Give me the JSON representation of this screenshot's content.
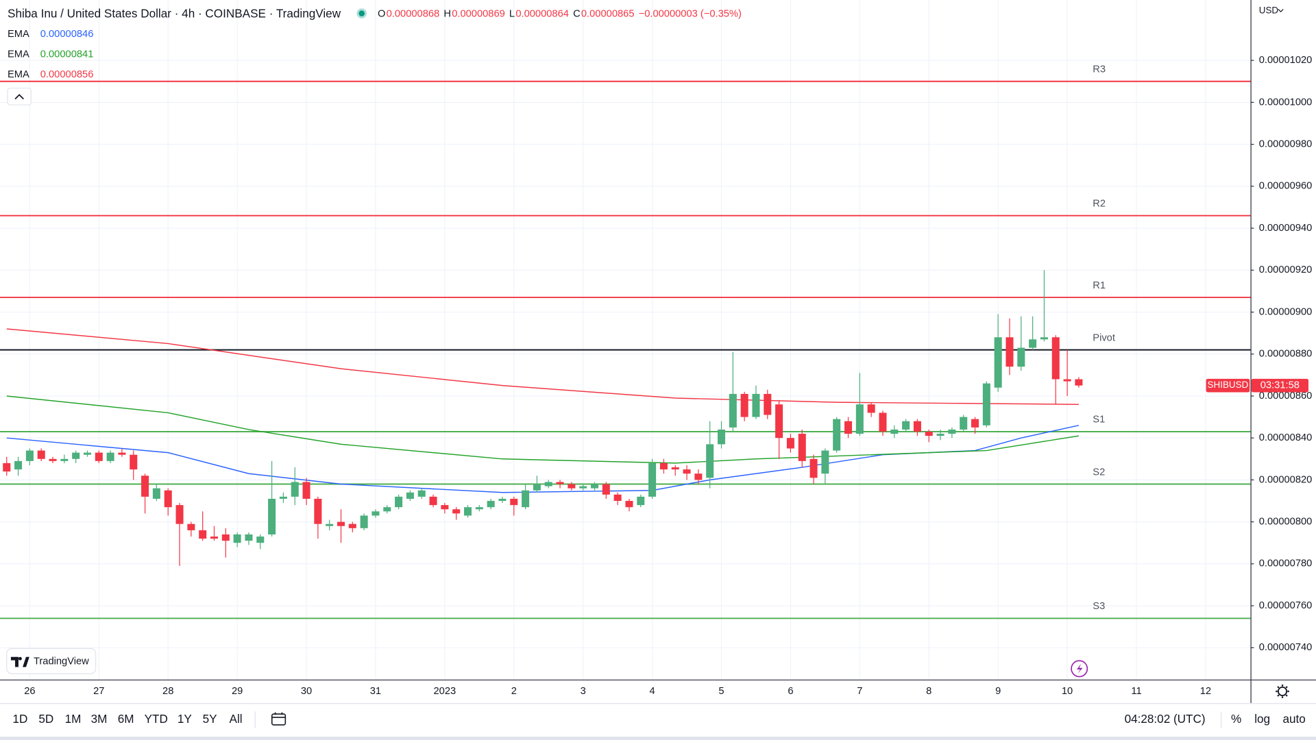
{
  "chart_data": {
    "type": "candlestick",
    "title": "Shiba Inu / United States Dollar · 4h · COINBASE · TradingView",
    "ohlc": [
      {
        "k": "O",
        "v": "0.00000868"
      },
      {
        "k": "H",
        "v": "0.00000869"
      },
      {
        "k": "L",
        "v": "0.00000864"
      },
      {
        "k": "C",
        "v": "0.00000865"
      }
    ],
    "change": "−0.00000003 (−0.35%)",
    "x": [
      0,
      1,
      2,
      3,
      4,
      5,
      6,
      7,
      8,
      9,
      10,
      11,
      12,
      13,
      14,
      15,
      16,
      17,
      18,
      19,
      20,
      21,
      22,
      23,
      24,
      25,
      26,
      27,
      28,
      29,
      30,
      31,
      32,
      33,
      34,
      35,
      36,
      37,
      38,
      39,
      40,
      41,
      42,
      43,
      44,
      45,
      46,
      47,
      48,
      49,
      50,
      51,
      52,
      53,
      54,
      55,
      56,
      57,
      58,
      59,
      60,
      61,
      62,
      63,
      64,
      65,
      66,
      67,
      68,
      69,
      70,
      71,
      72,
      73,
      74,
      75,
      76,
      77,
      78,
      79,
      80,
      81,
      82,
      83,
      84,
      85,
      86,
      87,
      88,
      89,
      90,
      91,
      92,
      93
    ],
    "open": [
      8.28e-06,
      8.25e-06,
      8.29e-06,
      8.34e-06,
      8.3e-06,
      8.29e-06,
      8.3e-06,
      8.32e-06,
      8.33e-06,
      8.29e-06,
      8.33e-06,
      8.32e-06,
      8.22e-06,
      8.11e-06,
      8.15e-06,
      8.08e-06,
      7.99e-06,
      7.96e-06,
      7.93e-06,
      7.94e-06,
      7.9e-06,
      7.91e-06,
      7.9e-06,
      7.94e-06,
      8.11e-06,
      8.12e-06,
      8.19e-06,
      8.11e-06,
      7.98e-06,
      8e-06,
      7.99e-06,
      7.97e-06,
      8.03e-06,
      8.05e-06,
      8.07e-06,
      8.11e-06,
      8.12e-06,
      8.12e-06,
      8.08e-06,
      8.06e-06,
      8.03e-06,
      8.06e-06,
      8.07e-06,
      8.1e-06,
      8.11e-06,
      8.07e-06,
      8.15e-06,
      8.17e-06,
      8.19e-06,
      8.18e-06,
      8.16e-06,
      8.16e-06,
      8.18e-06,
      8.13e-06,
      8.1e-06,
      8.08e-06,
      8.12e-06,
      8.28e-06,
      8.26e-06,
      8.25e-06,
      8.23e-06,
      8.21e-06,
      8.37e-06,
      8.45e-06,
      8.61e-06,
      8.5e-06,
      8.61e-06,
      8.56e-06,
      8.4e-06,
      8.42e-06,
      8.3e-06,
      8.23e-06,
      8.34e-06,
      8.48e-06,
      8.42e-06,
      8.56e-06,
      8.52e-06,
      8.42e-06,
      8.44e-06,
      8.48e-06,
      8.43e-06,
      8.41e-06,
      8.42e-06,
      8.44e-06,
      8.49e-06,
      8.46e-06,
      8.64e-06,
      8.88e-06,
      8.74e-06,
      8.83e-06,
      8.87e-06,
      8.88e-06,
      8.68e-06,
      8.68e-06
    ],
    "high": [
      8.31e-06,
      8.31e-06,
      8.35e-06,
      8.35e-06,
      8.31e-06,
      8.32e-06,
      8.34e-06,
      8.34e-06,
      8.34e-06,
      8.34e-06,
      8.35e-06,
      8.34e-06,
      8.23e-06,
      8.18e-06,
      8.16e-06,
      8.09e-06,
      8e-06,
      8.05e-06,
      7.98e-06,
      7.97e-06,
      7.95e-06,
      7.95e-06,
      7.94e-06,
      8.29e-06,
      8.14e-06,
      8.26e-06,
      8.21e-06,
      8.12e-06,
      8.01e-06,
      8.06e-06,
      8e-06,
      8.04e-06,
      8.06e-06,
      8.08e-06,
      8.13e-06,
      8.15e-06,
      8.16e-06,
      8.13e-06,
      8.09e-06,
      8.07e-06,
      8.08e-06,
      8.08e-06,
      8.11e-06,
      8.12e-06,
      8.12e-06,
      8.18e-06,
      8.22e-06,
      8.2e-06,
      8.2e-06,
      8.19e-06,
      8.18e-06,
      8.19e-06,
      8.19e-06,
      8.14e-06,
      8.11e-06,
      8.13e-06,
      8.3e-06,
      8.3e-06,
      8.27e-06,
      8.27e-06,
      8.25e-06,
      8.48e-06,
      8.48e-06,
      8.81e-06,
      8.62e-06,
      8.65e-06,
      8.63e-06,
      8.58e-06,
      8.42e-06,
      8.44e-06,
      8.32e-06,
      8.35e-06,
      8.5e-06,
      8.5e-06,
      8.71e-06,
      8.57e-06,
      8.53e-06,
      8.46e-06,
      8.49e-06,
      8.49e-06,
      8.44e-06,
      8.44e-06,
      8.45e-06,
      8.51e-06,
      8.5e-06,
      8.67e-06,
      8.99e-06,
      8.97e-06,
      8.98e-06,
      8.98e-06,
      9.2e-06,
      8.89e-06,
      8.82e-06,
      8.69e-06
    ],
    "low": [
      8.22e-06,
      8.22e-06,
      8.27e-06,
      8.29e-06,
      8.28e-06,
      8.28e-06,
      8.28e-06,
      8.31e-06,
      8.28e-06,
      8.28e-06,
      8.31e-06,
      8.2e-06,
      8.04e-06,
      8.1e-06,
      8.03e-06,
      7.79e-06,
      7.93e-06,
      7.91e-06,
      7.91e-06,
      7.83e-06,
      7.88e-06,
      7.89e-06,
      7.87e-06,
      7.93e-06,
      8.09e-06,
      8.08e-06,
      8.08e-06,
      7.92e-06,
      7.96e-06,
      7.9e-06,
      7.95e-06,
      7.96e-06,
      8.02e-06,
      8.04e-06,
      8.06e-06,
      8.1e-06,
      8.11e-06,
      8.07e-06,
      8.04e-06,
      8.01e-06,
      8.02e-06,
      8.05e-06,
      8.06e-06,
      8.09e-06,
      8.03e-06,
      8.06e-06,
      8.14e-06,
      8.16e-06,
      8.16e-06,
      8.15e-06,
      8.15e-06,
      8.15e-06,
      8.11e-06,
      8.08e-06,
      8.05e-06,
      8.07e-06,
      8.11e-06,
      8.23e-06,
      8.22e-06,
      8.2e-06,
      8.18e-06,
      8.16e-06,
      8.35e-06,
      8.43e-06,
      8.48e-06,
      8.49e-06,
      8.49e-06,
      8.3e-06,
      8.33e-06,
      8.26e-06,
      8.18e-06,
      8.18e-06,
      8.33e-06,
      8.4e-06,
      8.41e-06,
      8.5e-06,
      8.41e-06,
      8.4e-06,
      8.43e-06,
      8.41e-06,
      8.38e-06,
      8.39e-06,
      8.4e-06,
      8.43e-06,
      8.42e-06,
      8.45e-06,
      8.62e-06,
      8.7e-06,
      8.72e-06,
      8.82e-06,
      8.86e-06,
      8.56e-06,
      8.6e-06,
      8.64e-06
    ],
    "close": [
      8.24e-06,
      8.29e-06,
      8.34e-06,
      8.3e-06,
      8.29e-06,
      8.3e-06,
      8.33e-06,
      8.33e-06,
      8.29e-06,
      8.33e-06,
      8.32e-06,
      8.25e-06,
      8.12e-06,
      8.16e-06,
      8.07e-06,
      7.99e-06,
      7.96e-06,
      7.92e-06,
      7.92e-06,
      7.91e-06,
      7.94e-06,
      7.94e-06,
      7.93e-06,
      8.11e-06,
      8.12e-06,
      8.19e-06,
      8.11e-06,
      7.99e-06,
      7.99e-06,
      7.98e-06,
      7.97e-06,
      8.03e-06,
      8.05e-06,
      8.07e-06,
      8.12e-06,
      8.14e-06,
      8.15e-06,
      8.08e-06,
      8.06e-06,
      8.04e-06,
      8.07e-06,
      8.07e-06,
      8.1e-06,
      8.11e-06,
      8.08e-06,
      8.15e-06,
      8.18e-06,
      8.19e-06,
      8.18e-06,
      8.16e-06,
      8.17e-06,
      8.18e-06,
      8.13e-06,
      8.1e-06,
      8.07e-06,
      8.12e-06,
      8.28e-06,
      8.25e-06,
      8.25e-06,
      8.23e-06,
      8.2e-06,
      8.37e-06,
      8.44e-06,
      8.61e-06,
      8.5e-06,
      8.61e-06,
      8.51e-06,
      8.4e-06,
      8.35e-06,
      8.29e-06,
      8.21e-06,
      8.34e-06,
      8.49e-06,
      8.42e-06,
      8.56e-06,
      8.52e-06,
      8.43e-06,
      8.44e-06,
      8.48e-06,
      8.43e-06,
      8.41e-06,
      8.42e-06,
      8.44e-06,
      8.5e-06,
      8.45e-06,
      8.66e-06,
      8.88e-06,
      8.74e-06,
      8.83e-06,
      8.87e-06,
      8.88e-06,
      8.68e-06,
      8.67e-06,
      8.65e-06
    ],
    "up_color": "#4caf7d",
    "down_color": "#f23645",
    "lines": [
      {
        "name": "EMA",
        "value_label": "0.00000846",
        "color": "#2962ff",
        "x": [
          0,
          14,
          21,
          29,
          43,
          56,
          61,
          69,
          76,
          84,
          88,
          93
        ],
        "values": [
          8.4e-06,
          8.33e-06,
          8.23e-06,
          8.18e-06,
          8.14e-06,
          8.15e-06,
          8.2e-06,
          8.26e-06,
          8.32e-06,
          8.34e-06,
          8.4e-06,
          8.46e-06
        ]
      },
      {
        "name": "EMA",
        "value_label": "0.00000841",
        "color": "#22a228",
        "x": [
          0,
          14,
          21,
          29,
          43,
          58,
          65,
          80,
          85,
          93
        ],
        "values": [
          8.6e-06,
          8.52e-06,
          8.44e-06,
          8.37e-06,
          8.3e-06,
          8.28e-06,
          8.3e-06,
          8.33e-06,
          8.34e-06,
          8.41e-06
        ]
      },
      {
        "name": "EMA",
        "value_label": "0.00000856",
        "color": "#f23645",
        "x": [
          0,
          14,
          29,
          43,
          58,
          72,
          93
        ],
        "values": [
          8.92e-06,
          8.85e-06,
          8.73e-06,
          8.65e-06,
          8.59e-06,
          8.57e-06,
          8.56e-06
        ]
      }
    ],
    "levels": [
      {
        "label": "R3",
        "value": 1.01e-05,
        "color": "#f23645"
      },
      {
        "label": "R2",
        "value": 9.46e-06,
        "color": "#f23645"
      },
      {
        "label": "R1",
        "value": 9.07e-06,
        "color": "#f23645"
      },
      {
        "label": "Pivot",
        "value": 8.82e-06,
        "color": "#131722"
      },
      {
        "label": "S1",
        "value": 8.43e-06,
        "color": "#4caf50"
      },
      {
        "label": "S2",
        "value": 8.18e-06,
        "color": "#4caf50"
      },
      {
        "label": "S3",
        "value": 7.54e-06,
        "color": "#4caf50"
      }
    ],
    "xlim": [
      -0.58,
      107.9
    ],
    "xticks": [
      {
        "value": 2,
        "label": "26"
      },
      {
        "value": 8,
        "label": "27"
      },
      {
        "value": 14,
        "label": "28"
      },
      {
        "value": 20,
        "label": "29"
      },
      {
        "value": 26,
        "label": "30"
      },
      {
        "value": 32,
        "label": "31"
      },
      {
        "value": 38,
        "label": "2023"
      },
      {
        "value": 44,
        "label": "2"
      },
      {
        "value": 50,
        "label": "3"
      },
      {
        "value": 56,
        "label": "4"
      },
      {
        "value": 62,
        "label": "5"
      },
      {
        "value": 68,
        "label": "6"
      },
      {
        "value": 74,
        "label": "7"
      },
      {
        "value": 80,
        "label": "8"
      },
      {
        "value": 86,
        "label": "9"
      },
      {
        "value": 92,
        "label": "10"
      },
      {
        "value": 98,
        "label": "11"
      },
      {
        "value": 104,
        "label": "12"
      }
    ],
    "ylim": [
      7.248e-06,
      1.0488e-05
    ],
    "yticks": [
      {
        "value": 7.4e-06,
        "label": "0.00000740"
      },
      {
        "value": 7.6e-06,
        "label": "0.00000760"
      },
      {
        "value": 7.8e-06,
        "label": "0.00000780"
      },
      {
        "value": 8e-06,
        "label": "0.00000800"
      },
      {
        "value": 8.2e-06,
        "label": "0.00000820"
      },
      {
        "value": 8.4e-06,
        "label": "0.00000840"
      },
      {
        "value": 8.6e-06,
        "label": "0.00000860"
      },
      {
        "value": 8.8e-06,
        "label": "0.00000880"
      },
      {
        "value": 9e-06,
        "label": "0.00000900"
      },
      {
        "value": 9.2e-06,
        "label": "0.00000920"
      },
      {
        "value": 9.4e-06,
        "label": "0.00000940"
      },
      {
        "value": 9.6e-06,
        "label": "0.00000960"
      },
      {
        "value": 9.8e-06,
        "label": "0.00000980"
      },
      {
        "value": 1e-05,
        "label": "0.00001000"
      },
      {
        "value": 1.02e-05,
        "label": "0.00001020"
      }
    ],
    "grid": true,
    "currency": "USD",
    "symbol": "SHIBUSD",
    "countdown": "03:31:58",
    "logo": "TradingView"
  },
  "toolbar": {
    "ranges": [
      "1D",
      "5D",
      "1M",
      "3M",
      "6M",
      "YTD",
      "1Y",
      "5Y",
      "All"
    ],
    "clock": "04:28:02 (UTC)",
    "options": [
      "%",
      "log",
      "auto"
    ]
  }
}
